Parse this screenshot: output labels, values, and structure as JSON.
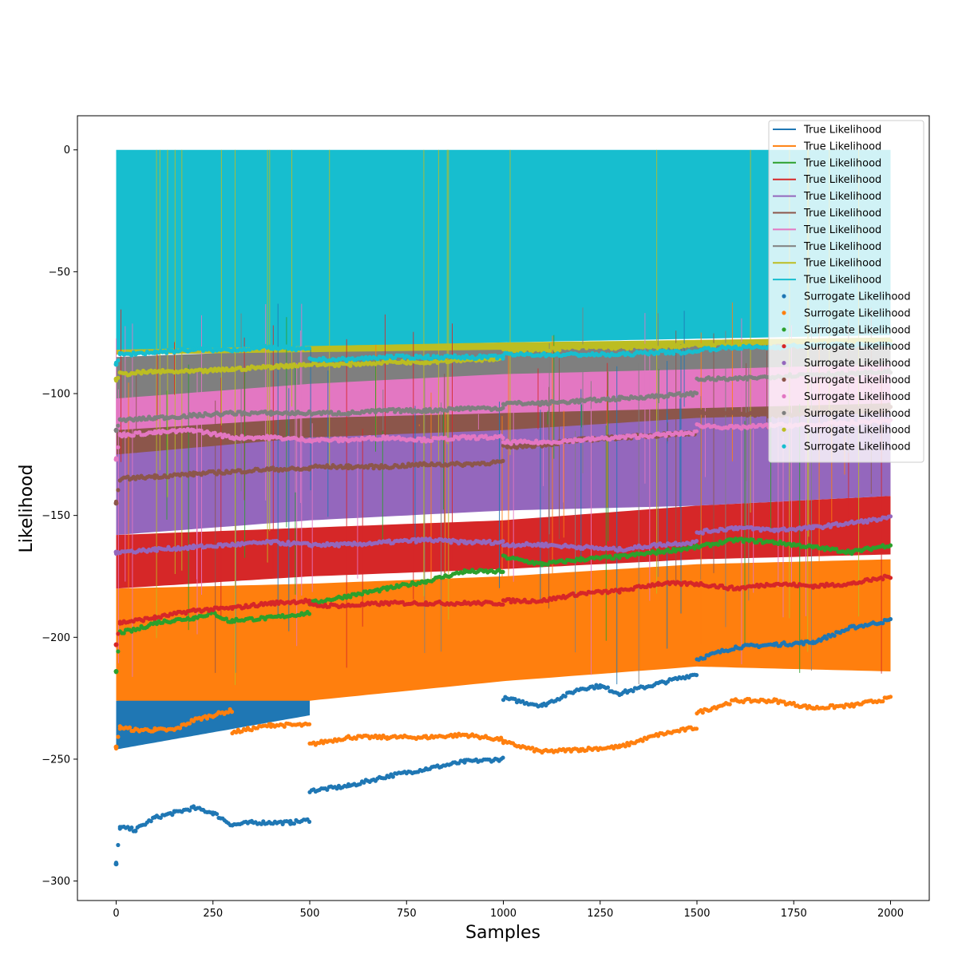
{
  "chart_data": {
    "type": "line",
    "xlabel": "Samples",
    "ylabel": "Likelihood",
    "xlim": [
      -100,
      2100
    ],
    "ylim": [
      -308,
      14
    ],
    "xticks": [
      0,
      250,
      500,
      750,
      1000,
      1250,
      1500,
      1750,
      2000
    ],
    "yticks": [
      0,
      -50,
      -100,
      -150,
      -200,
      -250,
      -300
    ],
    "legend_position": "top-right",
    "grid": false,
    "series_colors": [
      "#1f77b4",
      "#ff7f0e",
      "#2ca02c",
      "#d62728",
      "#9467bd",
      "#8c564b",
      "#e377c2",
      "#7f7f7f",
      "#bcbd22",
      "#17becf"
    ],
    "true_likelihood": {
      "name": "True Likelihood",
      "description_bands": [
        {
          "color": "#1f77b4",
          "x": [
            0,
            500
          ],
          "low": [
            -246,
            -232
          ],
          "high": [
            -226,
            -222
          ]
        },
        {
          "color": "#ff7f0e",
          "x": [
            0,
            500,
            1000,
            1500,
            2000
          ],
          "low": [
            -226,
            -226,
            -218,
            -212,
            -214
          ],
          "high": [
            -180,
            -178,
            -175,
            -170,
            -168
          ]
        },
        {
          "color": "#d62728",
          "x": [
            0,
            500,
            1000,
            1500,
            2000
          ],
          "low": [
            -180,
            -175,
            -172,
            -168,
            -166
          ],
          "high": [
            -158,
            -155,
            -152,
            -146,
            -142
          ]
        },
        {
          "color": "#9467bd",
          "x": [
            0,
            500,
            1000,
            1500,
            2000
          ],
          "low": [
            -158,
            -152,
            -148,
            -146,
            -142
          ],
          "high": [
            -120,
            -118,
            -112,
            -108,
            -106
          ]
        },
        {
          "color": "#8c564b",
          "x": [
            0,
            500,
            1000,
            1500,
            2000
          ],
          "low": [
            -125,
            -118,
            -115,
            -110,
            -108
          ],
          "high": [
            -110,
            -108,
            -105,
            -103,
            -102
          ]
        },
        {
          "color": "#e377c2",
          "x": [
            0,
            500,
            1000,
            1500,
            2000
          ],
          "low": [
            -115,
            -110,
            -108,
            -106,
            -104
          ],
          "high": [
            -92,
            -90,
            -88,
            -85,
            -84
          ]
        },
        {
          "color": "#7f7f7f",
          "x": [
            0,
            500,
            1000,
            1500,
            2000
          ],
          "low": [
            -102,
            -96,
            -92,
            -90,
            -88
          ],
          "high": [
            -85,
            -82,
            -80,
            -78,
            -77
          ]
        },
        {
          "color": "#bcbd22",
          "x": [
            0,
            500,
            1000,
            1500,
            2000
          ],
          "low": [
            -84,
            -83,
            -82,
            -80,
            -79
          ],
          "high": [
            -80,
            -80,
            -79,
            -78,
            -77
          ]
        },
        {
          "color": "#17becf",
          "x": [
            0,
            2000
          ],
          "low": [
            -82,
            -76
          ],
          "high": [
            0,
            0
          ]
        }
      ]
    },
    "surrogate_likelihood": {
      "name": "Surrogate Likelihood",
      "series": [
        {
          "color": "#1f77b4",
          "x": [
            0,
            10,
            50,
            100,
            150,
            200,
            250,
            300,
            350,
            400,
            450,
            499,
            500,
            600,
            700,
            800,
            900,
            999,
            1000,
            1100,
            1200,
            1250,
            1300,
            1400,
            1499,
            1500,
            1600,
            1700,
            1800,
            1900,
            2000
          ],
          "y": [
            -293,
            -278,
            -279,
            -274,
            -272,
            -270,
            -272,
            -277,
            -276,
            -276,
            -276,
            -275,
            -263,
            -261,
            -257,
            -254,
            -251,
            -250,
            -225,
            -228,
            -221,
            -220,
            -223,
            -219,
            -215,
            -209,
            -204,
            -203,
            -202,
            -196,
            -193
          ]
        },
        {
          "color": "#ff7f0e",
          "x": [
            0,
            10,
            50,
            100,
            150,
            200,
            250,
            299,
            300,
            400,
            499,
            500,
            600,
            700,
            800,
            900,
            999,
            1000,
            1100,
            1200,
            1300,
            1400,
            1499,
            1500,
            1600,
            1700,
            1800,
            1900,
            2000
          ],
          "y": [
            -245,
            -237,
            -238,
            -238,
            -238,
            -234,
            -232,
            -230,
            -239,
            -236,
            -236,
            -244,
            -241,
            -241,
            -241,
            -240,
            -242,
            -243,
            -247,
            -246,
            -245,
            -240,
            -237,
            -231,
            -226,
            -226,
            -229,
            -228,
            -225
          ]
        },
        {
          "color": "#2ca02c",
          "x": [
            0,
            10,
            50,
            100,
            150,
            200,
            250,
            299,
            300,
            400,
            499,
            500,
            600,
            700,
            800,
            900,
            999,
            1000,
            1100,
            1200,
            1300,
            1400,
            1499,
            1500,
            1600,
            1700,
            1800,
            1900,
            2000
          ],
          "y": [
            -214,
            -198,
            -197,
            -194,
            -193,
            -192,
            -190,
            -194,
            -193,
            -192,
            -190,
            -186,
            -183,
            -180,
            -177,
            -173,
            -173,
            -167,
            -170,
            -168,
            -167,
            -165,
            -163,
            -163,
            -160,
            -161,
            -163,
            -165,
            -162
          ]
        },
        {
          "color": "#d62728",
          "x": [
            0,
            10,
            100,
            200,
            300,
            400,
            499,
            500,
            600,
            700,
            800,
            900,
            999,
            1000,
            1100,
            1200,
            1300,
            1400,
            1499,
            1500,
            1600,
            1700,
            1800,
            1900,
            2000
          ],
          "y": [
            -203,
            -194,
            -192,
            -189,
            -188,
            -186,
            -185,
            -187,
            -187,
            -186,
            -186,
            -186,
            -186,
            -185,
            -185,
            -182,
            -181,
            -178,
            -178,
            -178,
            -180,
            -178,
            -179,
            -178,
            -175
          ]
        },
        {
          "color": "#9467bd",
          "x": [
            0,
            10,
            100,
            200,
            300,
            400,
            499,
            500,
            600,
            700,
            800,
            900,
            999,
            1000,
            1100,
            1200,
            1300,
            1400,
            1499,
            1500,
            1600,
            1700,
            1800,
            1900,
            2000
          ],
          "y": [
            -165,
            -165,
            -164,
            -163,
            -162,
            -161,
            -162,
            -162,
            -162,
            -161,
            -160,
            -161,
            -161,
            -162,
            -162,
            -163,
            -164,
            -162,
            -161,
            -157,
            -155,
            -156,
            -155,
            -153,
            -151
          ]
        },
        {
          "color": "#8c564b",
          "x": [
            0,
            10,
            100,
            200,
            300,
            400,
            499,
            500,
            600,
            700,
            800,
            900,
            999,
            1000,
            1100,
            1200,
            1300,
            1400,
            1499,
            1500,
            1600,
            1700,
            1800,
            1900,
            2000
          ],
          "y": [
            -145,
            -135,
            -134,
            -133,
            -132,
            -131,
            -131,
            -130,
            -130,
            -130,
            -129,
            -129,
            -128,
            -122,
            -121,
            -119,
            -118,
            -117,
            -116,
            -108,
            -108,
            -109,
            -108,
            -106,
            -105
          ]
        },
        {
          "color": "#e377c2",
          "x": [
            0,
            10,
            100,
            200,
            300,
            400,
            499,
            500,
            600,
            700,
            800,
            900,
            999,
            1000,
            1100,
            1200,
            1300,
            1400,
            1499,
            1500,
            1600,
            1700,
            1800,
            1900,
            2000
          ],
          "y": [
            -127,
            -117,
            -116,
            -115,
            -118,
            -118,
            -119,
            -119,
            -119,
            -118,
            -119,
            -118,
            -118,
            -120,
            -120,
            -119,
            -118,
            -117,
            -116,
            -113,
            -114,
            -113,
            -113,
            -112,
            -111
          ]
        },
        {
          "color": "#7f7f7f",
          "x": [
            0,
            10,
            100,
            200,
            300,
            400,
            499,
            500,
            600,
            700,
            800,
            900,
            999,
            1000,
            1100,
            1200,
            1300,
            1400,
            1499,
            1500,
            1600,
            1700,
            1800,
            1900,
            2000
          ],
          "y": [
            -115,
            -111,
            -110,
            -109,
            -108,
            -108,
            -108,
            -108,
            -108,
            -107,
            -107,
            -106,
            -106,
            -104,
            -104,
            -103,
            -102,
            -101,
            -100,
            -94,
            -94,
            -93,
            -92,
            -92,
            -91
          ]
        },
        {
          "color": "#bcbd22",
          "x": [
            0,
            10,
            100,
            200,
            300,
            400,
            499,
            500,
            600,
            700,
            800,
            900,
            999,
            1000,
            1100,
            1200,
            1300,
            1400,
            1499,
            1500,
            1600,
            1700,
            1800,
            1900,
            2000
          ],
          "y": [
            -94,
            -92,
            -91,
            -91,
            -90,
            -89,
            -88,
            -88,
            -88,
            -87,
            -87,
            -86,
            -86,
            -82,
            -82,
            -81,
            -81,
            -81,
            -80,
            -80,
            -80,
            -79,
            -79,
            -79,
            -78
          ]
        },
        {
          "color": "#17becf",
          "x": [
            0,
            10,
            100,
            200,
            300,
            400,
            499,
            500,
            600,
            700,
            800,
            900,
            999,
            1000,
            1100,
            1200,
            1300,
            1400,
            1499,
            1500,
            1600,
            1700,
            1800,
            1900,
            2000
          ],
          "y": [
            -88,
            -84,
            -83,
            -82,
            -82,
            -81,
            -82,
            -86,
            -86,
            -85,
            -85,
            -85,
            -85,
            -84,
            -84,
            -84,
            -84,
            -83,
            -83,
            -82,
            -81,
            -81,
            -80,
            -80,
            -80
          ]
        }
      ]
    },
    "legend": [
      "True Likelihood",
      "True Likelihood",
      "True Likelihood",
      "True Likelihood",
      "True Likelihood",
      "True Likelihood",
      "True Likelihood",
      "True Likelihood",
      "True Likelihood",
      "True Likelihood",
      "Surrogate Likelihood",
      "Surrogate Likelihood",
      "Surrogate Likelihood",
      "Surrogate Likelihood",
      "Surrogate Likelihood",
      "Surrogate Likelihood",
      "Surrogate Likelihood",
      "Surrogate Likelihood",
      "Surrogate Likelihood",
      "Surrogate Likelihood"
    ]
  }
}
